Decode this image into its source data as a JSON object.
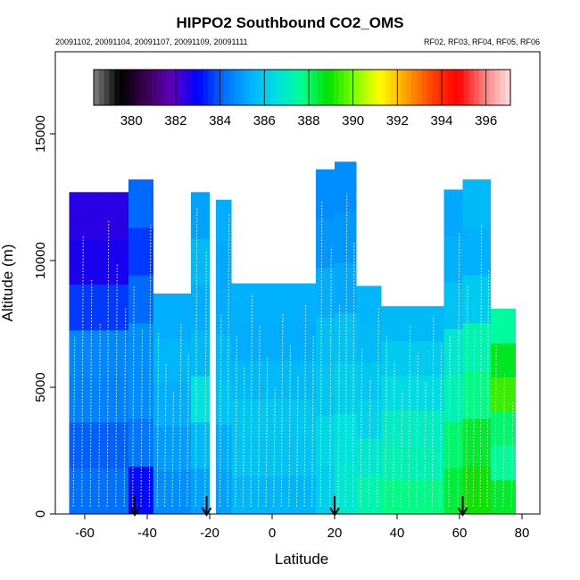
{
  "chart_data": {
    "type": "heatmap",
    "title": "HIPPO2 Southbound CO2_OMS",
    "subtitle_left": "20091102, 20091104, 20091107, 20091109, 20091111",
    "subtitle_right": "RF02, RF03, RF04, RF05, RF06",
    "xlabel": "Latitude",
    "ylabel": "Altitude (m)",
    "xlim": [
      -70,
      90
    ],
    "ylim": [
      0,
      18000
    ],
    "x_ticks": [
      "-60",
      "-40",
      "-20",
      "0",
      "20",
      "40",
      "60",
      "80"
    ],
    "x_tick_values": [
      -60,
      -40,
      -20,
      0,
      20,
      40,
      60,
      80
    ],
    "y_ticks": [
      "0",
      "5000",
      "10000",
      "15000"
    ],
    "y_tick_values": [
      0,
      5000,
      10000,
      15000
    ],
    "colorbar": {
      "min": 378.3,
      "max": 397.1,
      "tick_labels": [
        "380",
        "382",
        "384",
        "386",
        "388",
        "390",
        "392",
        "394",
        "396"
      ],
      "tick_values": [
        380,
        382,
        384,
        386,
        388,
        390,
        392,
        394,
        396
      ],
      "colors": [
        "#808080",
        "#000000",
        "#3a0050",
        "#6000c0",
        "#0000ff",
        "#0070ff",
        "#00b0ff",
        "#00e0e0",
        "#00ff90",
        "#00e000",
        "#80ff00",
        "#ffff00",
        "#ffa000",
        "#ff4000",
        "#ff0000",
        "#ff8080",
        "#ffe0e0"
      ]
    },
    "arrow_latitudes": [
      -44,
      -21,
      20,
      61
    ],
    "columns": [
      {
        "lat_min": -65,
        "lat_max": -46,
        "alt_top": 12700,
        "profile": [
          384.2,
          384.0,
          384.5,
          384.6,
          383.6,
          382.7,
          382.5
        ]
      },
      {
        "lat_min": -46,
        "lat_max": -38,
        "alt_top": 13200,
        "profile": [
          383.1,
          384.3,
          384.7,
          384.7,
          384.1,
          383.6,
          384.1
        ]
      },
      {
        "lat_min": -38,
        "lat_max": -26,
        "alt_top": 8700,
        "profile": [
          384.7,
          385.0,
          385.3,
          385.5,
          385.3
        ]
      },
      {
        "lat_min": -26,
        "lat_max": -20,
        "alt_top": 12700,
        "profile": [
          385.1,
          385.6,
          386.6,
          385.6,
          385.3,
          385.6,
          385.1
        ]
      },
      {
        "lat_min": -18,
        "lat_max": -13,
        "alt_top": 12400,
        "profile": [
          385.1,
          385.3,
          385.8,
          385.6,
          385.3,
          385.2,
          385.3
        ]
      },
      {
        "lat_min": -13,
        "lat_max": 14,
        "alt_top": 9100,
        "profile": [
          385.5,
          385.8,
          385.9,
          385.6,
          385.3,
          385.4
        ]
      },
      {
        "lat_min": 14,
        "lat_max": 20,
        "alt_top": 13600,
        "profile": [
          386.1,
          386.3,
          385.9,
          385.7,
          385.3,
          384.9,
          384.7
        ]
      },
      {
        "lat_min": 20,
        "lat_max": 27,
        "alt_top": 13900,
        "profile": [
          386.8,
          386.6,
          386.1,
          385.8,
          385.2,
          384.9,
          384.7
        ]
      },
      {
        "lat_min": 27,
        "lat_max": 35,
        "alt_top": 9000,
        "profile": [
          387.3,
          386.8,
          386.2,
          385.9,
          385.6,
          385.5
        ]
      },
      {
        "lat_min": 35,
        "lat_max": 55,
        "alt_top": 8200,
        "profile": [
          387.8,
          387.2,
          387.0,
          386.4,
          386.0,
          385.6
        ]
      },
      {
        "lat_min": 55,
        "lat_max": 61,
        "alt_top": 12800,
        "profile": [
          388.4,
          388.0,
          387.2,
          386.8,
          385.8,
          385.4,
          385.2
        ]
      },
      {
        "lat_min": 61,
        "lat_max": 70,
        "alt_top": 13200,
        "profile": [
          389.0,
          388.5,
          387.8,
          387.3,
          386.0,
          385.4,
          385.6
        ]
      },
      {
        "lat_min": 70,
        "lat_max": 78,
        "alt_top": 8100,
        "profile": [
          388.5,
          387.6,
          388.0,
          389.4,
          388.6,
          387.5
        ]
      }
    ]
  }
}
